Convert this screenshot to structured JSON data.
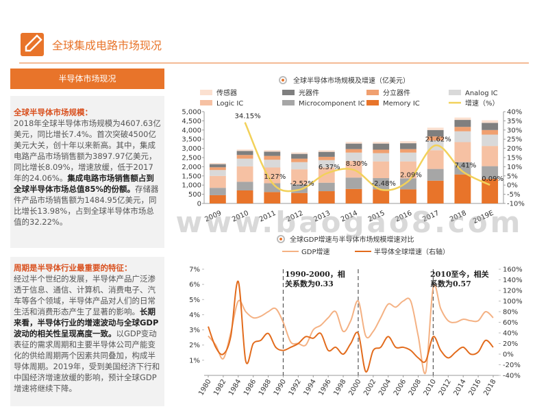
{
  "header": {
    "title": "全球集成电路市场现况"
  },
  "left_panel": {
    "title": "半导体市场现况",
    "block1": {
      "heading": "全球半导体市场规模：",
      "text1": "2018年全球半导体市场规模为4607.63亿美元，同比增长7.4%。首次突破4500亿美元大关，创十年以来新高。其中，集成电路产品市场销售额为3897.97亿美元，同比增长8.09%，增速放缓，低于2017年的24.06%。",
      "bold": "集成电路市场销售额占到全球半导体市场总值85%的份额。",
      "text2": "存储器件产品市场销售额为1484.95亿美元，同比增长13.98%，占到全球半导体市场总值的32.22%。"
    },
    "block2": {
      "heading": "周期是半导体行业最重要的特征：",
      "text1": "经过半个世纪的发展，半导体产品广泛渗透于信息、通信、计算机、消费电子、汽车等各个领域，半导体产品对人们的日常生活和消费形态产生了显著的影响。",
      "bold": "长期来看，半导体行业的增速波动与全球GDP波动的相关性呈现高度一致。",
      "text2": "以GDP变动表征的需求周期和主要半导体公司产能变化的供给周期两个因素共同叠加，构成半导体周期。2019年，受到美国经济下行和中国经济增速放缓的影响，预计全球GDP增速将继续下降。"
    }
  },
  "watermark": "www.baogao8.com",
  "chart_data": [
    {
      "type": "bar",
      "stacked": true,
      "title": "全球半导体市场规模及增速（亿美元）",
      "categories": [
        "2009",
        "2010",
        "2011",
        "2012",
        "2013",
        "2014",
        "2015",
        "2016",
        "2017",
        "2018",
        "2019E"
      ],
      "series": [
        {
          "name": "传感器",
          "color": "#fbe0d0",
          "values": [
            60,
            80,
            80,
            80,
            80,
            90,
            90,
            110,
            130,
            130,
            140
          ]
        },
        {
          "name": "光器件",
          "color": "#7f7f7f",
          "values": [
            170,
            220,
            230,
            260,
            270,
            300,
            330,
            320,
            350,
            380,
            390
          ]
        },
        {
          "name": "分立器件",
          "color": "#f0a070",
          "values": [
            150,
            200,
            210,
            190,
            180,
            190,
            190,
            190,
            220,
            240,
            250
          ]
        },
        {
          "name": "Analog IC",
          "color": "#d9d9d9",
          "values": [
            320,
            420,
            420,
            390,
            400,
            450,
            450,
            480,
            530,
            590,
            620
          ]
        },
        {
          "name": "Logic IC",
          "color": "#f6c1a3",
          "values": [
            650,
            840,
            860,
            820,
            830,
            910,
            910,
            920,
            1020,
            1090,
            1100
          ]
        },
        {
          "name": "Microcomponent IC",
          "color": "#a6a6a6",
          "values": [
            400,
            470,
            480,
            470,
            460,
            620,
            610,
            600,
            640,
            670,
            690
          ]
        },
        {
          "name": "Memory IC",
          "color": "#e8742a",
          "values": [
            450,
            710,
            620,
            570,
            670,
            790,
            770,
            770,
            1240,
            1580,
            1340
          ]
        },
        {
          "name": "增速（%）",
          "color": "#f2d15a",
          "type": "line",
          "axis": "y2",
          "values": [
            null,
            34.15,
            1.27,
            -2.52,
            6.37,
            8.3,
            -2.48,
            2.09,
            21.62,
            7.41,
            0.09
          ],
          "value_labels": [
            null,
            "34.15%",
            "1.27%",
            "-2.52%",
            "6.37%",
            "8.30%",
            "-2.48%",
            "2.09%",
            "21.62%",
            "7.41%",
            "0.09%"
          ]
        }
      ],
      "ylim": [
        0,
        5000
      ],
      "yticks": [
        0,
        500,
        {
          "value": 1000,
          "label": "1,000"
        },
        {
          "value": 1500,
          "label": "1,500"
        },
        {
          "value": 2000,
          "label": "2,000"
        },
        {
          "value": 2500,
          "label": "2,500"
        },
        {
          "value": 3000,
          "label": "3,000"
        },
        {
          "value": 3500,
          "label": "3,500"
        },
        {
          "value": 4000,
          "label": "4,000"
        },
        {
          "value": 4500,
          "label": "4,500"
        },
        {
          "value": 5000,
          "label": "5,000"
        }
      ],
      "y2lim": [
        -10,
        40
      ],
      "y2ticks": [
        {
          "value": -10,
          "label": "-10%"
        },
        {
          "value": -5,
          "label": "-5%"
        },
        {
          "value": 0,
          "label": "0%"
        },
        {
          "value": 5,
          "label": "5%"
        },
        {
          "value": 10,
          "label": "10%"
        },
        {
          "value": 15,
          "label": "15%"
        },
        {
          "value": 20,
          "label": "20%"
        },
        {
          "value": 25,
          "label": "25%"
        },
        {
          "value": 30,
          "label": "30%"
        },
        {
          "value": 35,
          "label": "35%"
        },
        {
          "value": 40,
          "label": "40%"
        }
      ]
    },
    {
      "type": "line",
      "title": "全球GDP增速与半导体市场规模增速对比",
      "x": [
        1980,
        1981,
        1982,
        1983,
        1984,
        1985,
        1986,
        1987,
        1988,
        1989,
        1990,
        1991,
        1992,
        1993,
        1994,
        1995,
        1996,
        1997,
        1998,
        1999,
        2000,
        2001,
        2002,
        2003,
        2004,
        2005,
        2006,
        2007,
        2008,
        2009,
        2010,
        2011,
        2012,
        2013,
        2014,
        2015,
        2016,
        2017,
        2018
      ],
      "series": [
        {
          "name": "GDP增速",
          "color": "#f4b183",
          "values": [
            2.6,
            2.0,
            1.1,
            2.8,
            4.9,
            4.2,
            3.8,
            3.9,
            4.2,
            4.4,
            3.5,
            2.2,
            2.1,
            2.0,
            3.0,
            3.3,
            3.8,
            4.2,
            2.9,
            3.6,
            4.9,
            2.6,
            2.9,
            3.8,
            4.7,
            4.5,
            4.9,
            4.9,
            2.6,
            0.2,
            5.8,
            4.4,
            3.6,
            3.5,
            3.7,
            3.6,
            3.6,
            4.2,
            3.8
          ]
        },
        {
          "name": "半导体全球增速（右轴）",
          "color": "#e26b1c",
          "axis": "y2",
          "values": [
            52,
            13,
            0,
            33,
            137,
            -13,
            20,
            26,
            39,
            13,
            7,
            13,
            20,
            33,
            30,
            39,
            7,
            13,
            0,
            20,
            39,
            -33,
            7,
            13,
            33,
            13,
            13,
            7,
            -7,
            -13,
            33,
            7,
            -7,
            4,
            13,
            0,
            4,
            26,
            13
          ]
        }
      ],
      "xlim": [
        1980,
        2018
      ],
      "xticks": [
        1980,
        1982,
        1984,
        1986,
        1988,
        1990,
        1992,
        1994,
        1996,
        1998,
        2000,
        2002,
        2004,
        2006,
        2008,
        2010,
        2012,
        2014,
        2016,
        2018
      ],
      "ylim": [
        0,
        7
      ],
      "yticks": [
        {
          "value": 1,
          "label": "1%"
        },
        {
          "value": 2,
          "label": "2%"
        },
        {
          "value": 3,
          "label": "3%"
        },
        {
          "value": 4,
          "label": "4%"
        },
        {
          "value": 5,
          "label": "5%"
        },
        {
          "value": 6,
          "label": "6%"
        },
        {
          "value": 7,
          "label": "7%"
        }
      ],
      "y2lim": [
        -40,
        160
      ],
      "y2ticks": [
        {
          "value": -40,
          "label": "-40%"
        },
        {
          "value": -20,
          "label": "-20%"
        },
        {
          "value": 0,
          "label": "0%"
        },
        {
          "value": 20,
          "label": "20%"
        },
        {
          "value": 40,
          "label": "40%"
        },
        {
          "value": 60,
          "label": "60%"
        },
        {
          "value": 80,
          "label": "80%"
        },
        {
          "value": 100,
          "label": "100%"
        },
        {
          "value": 120,
          "label": "120%"
        },
        {
          "value": 140,
          "label": "140%"
        },
        {
          "value": 160,
          "label": "160%"
        }
      ],
      "reference_lines": [
        1990,
        2000,
        2010
      ],
      "annotations": [
        "1990-2000，相关系数为0.33",
        "2010至今，相关系数为0.57"
      ]
    }
  ]
}
